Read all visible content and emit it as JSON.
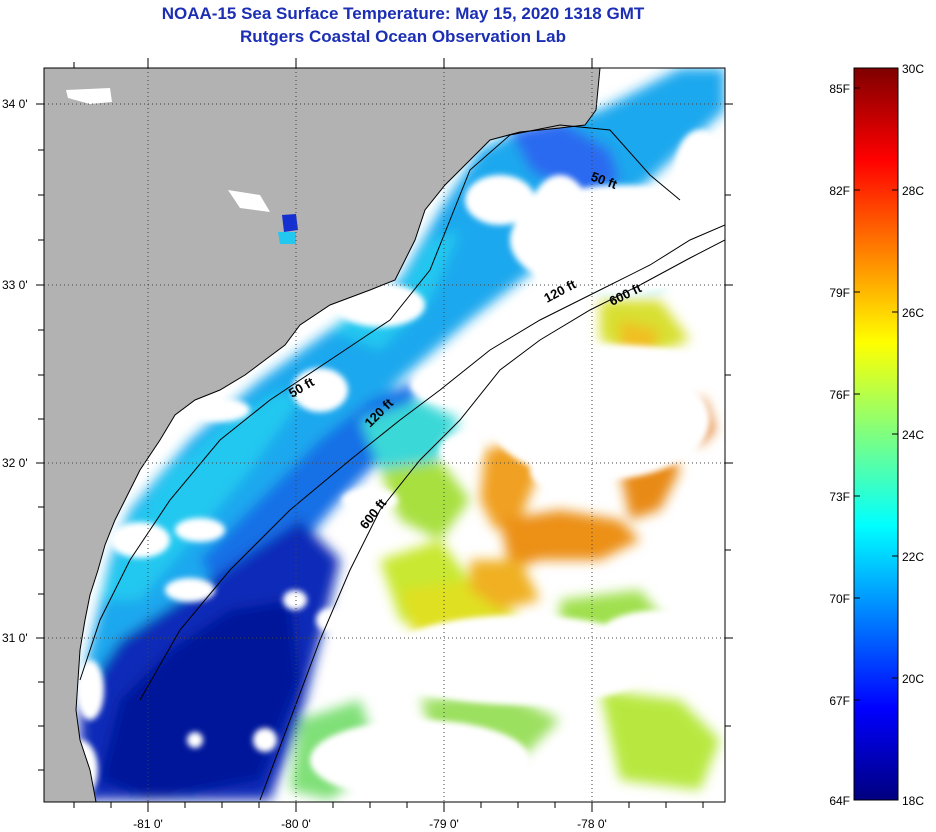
{
  "title": {
    "line1": "NOAA-15 Sea Surface Temperature:  May 15, 2020 1318 GMT",
    "line2": "Rutgers Coastal Ocean Observation Lab"
  },
  "map": {
    "lon_ticks": [
      "-81 0'",
      "-80 0'",
      "-79 0'",
      "-78 0'"
    ],
    "lat_ticks": [
      "34 0'",
      "33 0'",
      "32 0'",
      "31 0'"
    ],
    "contour_labels": [
      "50 ft",
      "50 ft",
      "120 ft",
      "120 ft",
      "600 ft",
      "600 ft"
    ]
  },
  "colorbar": {
    "fahrenheit_labels": [
      "85F",
      "82F",
      "79F",
      "76F",
      "73F",
      "70F",
      "67F",
      "64F"
    ],
    "celsius_labels": [
      "30C",
      "28C",
      "26C",
      "24C",
      "22C",
      "20C",
      "18C"
    ]
  },
  "colors": {
    "land": "#b2b2b2",
    "cloud": "#ffffff",
    "title": "#1c2fb4"
  }
}
